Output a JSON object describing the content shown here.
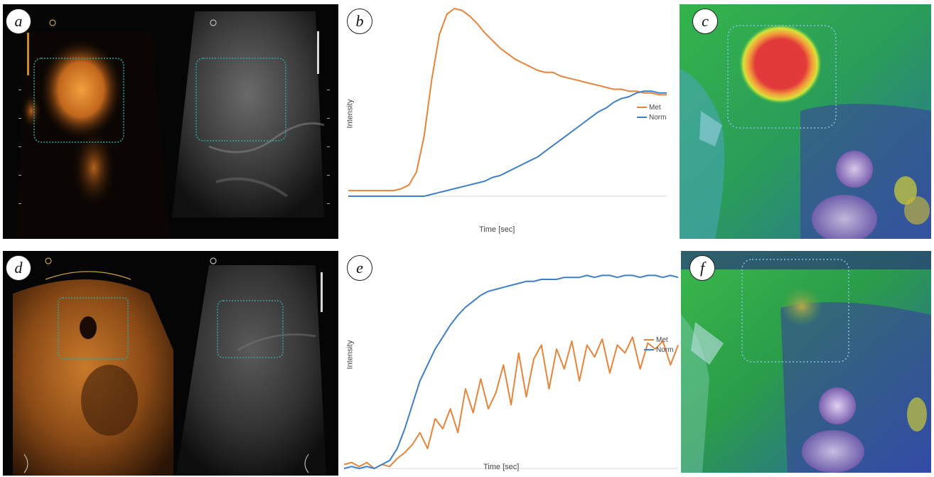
{
  "panels": {
    "a": {
      "label": "a"
    },
    "b": {
      "label": "b"
    },
    "c": {
      "label": "c"
    },
    "d": {
      "label": "d"
    },
    "e": {
      "label": "e"
    },
    "f": {
      "label": "f"
    }
  },
  "colors": {
    "met": "#e8843a",
    "norm": "#3f7fc8"
  },
  "chart_data": [
    {
      "type": "line",
      "panel": "b",
      "xlabel": "Time [sec]",
      "ylabel": "Intensity",
      "series": [
        {
          "name": "Met",
          "color": "#e8843a",
          "values": [
            0.03,
            0.03,
            0.03,
            0.03,
            0.03,
            0.03,
            0.03,
            0.04,
            0.06,
            0.13,
            0.32,
            0.62,
            0.86,
            0.97,
            1.0,
            0.99,
            0.96,
            0.92,
            0.87,
            0.83,
            0.79,
            0.76,
            0.73,
            0.71,
            0.69,
            0.67,
            0.66,
            0.66,
            0.64,
            0.63,
            0.62,
            0.61,
            0.6,
            0.59,
            0.58,
            0.57,
            0.57,
            0.56,
            0.56,
            0.55,
            0.55,
            0.54,
            0.54
          ]
        },
        {
          "name": "Norm",
          "color": "#3f7fc8",
          "values": [
            0.0,
            0.0,
            0.0,
            0.0,
            0.0,
            0.0,
            0.0,
            0.0,
            0.0,
            0.0,
            0.0,
            0.01,
            0.02,
            0.03,
            0.04,
            0.05,
            0.06,
            0.07,
            0.08,
            0.1,
            0.11,
            0.13,
            0.15,
            0.17,
            0.19,
            0.21,
            0.24,
            0.27,
            0.3,
            0.33,
            0.36,
            0.39,
            0.42,
            0.45,
            0.47,
            0.5,
            0.52,
            0.53,
            0.55,
            0.56,
            0.56,
            0.55,
            0.55
          ]
        }
      ]
    },
    {
      "type": "line",
      "panel": "e",
      "xlabel": "Time [sec]",
      "ylabel": "Intensity",
      "series": [
        {
          "name": "Met",
          "color": "#e8843a",
          "values": [
            0.02,
            0.03,
            0.01,
            0.03,
            0.0,
            0.02,
            0.01,
            0.05,
            0.08,
            0.12,
            0.18,
            0.1,
            0.25,
            0.2,
            0.3,
            0.18,
            0.4,
            0.28,
            0.45,
            0.3,
            0.38,
            0.52,
            0.32,
            0.58,
            0.36,
            0.55,
            0.62,
            0.4,
            0.6,
            0.5,
            0.64,
            0.44,
            0.62,
            0.56,
            0.65,
            0.48,
            0.62,
            0.58,
            0.66,
            0.5,
            0.63,
            0.6,
            0.64,
            0.52,
            0.62
          ]
        },
        {
          "name": "Norm",
          "color": "#3f7fc8",
          "values": [
            0.0,
            0.01,
            0.0,
            0.01,
            0.0,
            0.02,
            0.04,
            0.1,
            0.2,
            0.32,
            0.44,
            0.52,
            0.6,
            0.66,
            0.72,
            0.77,
            0.81,
            0.84,
            0.87,
            0.89,
            0.9,
            0.91,
            0.92,
            0.93,
            0.94,
            0.94,
            0.95,
            0.95,
            0.95,
            0.96,
            0.96,
            0.96,
            0.97,
            0.96,
            0.97,
            0.97,
            0.96,
            0.97,
            0.97,
            0.96,
            0.97,
            0.97,
            0.96,
            0.97,
            0.96
          ]
        }
      ]
    }
  ]
}
